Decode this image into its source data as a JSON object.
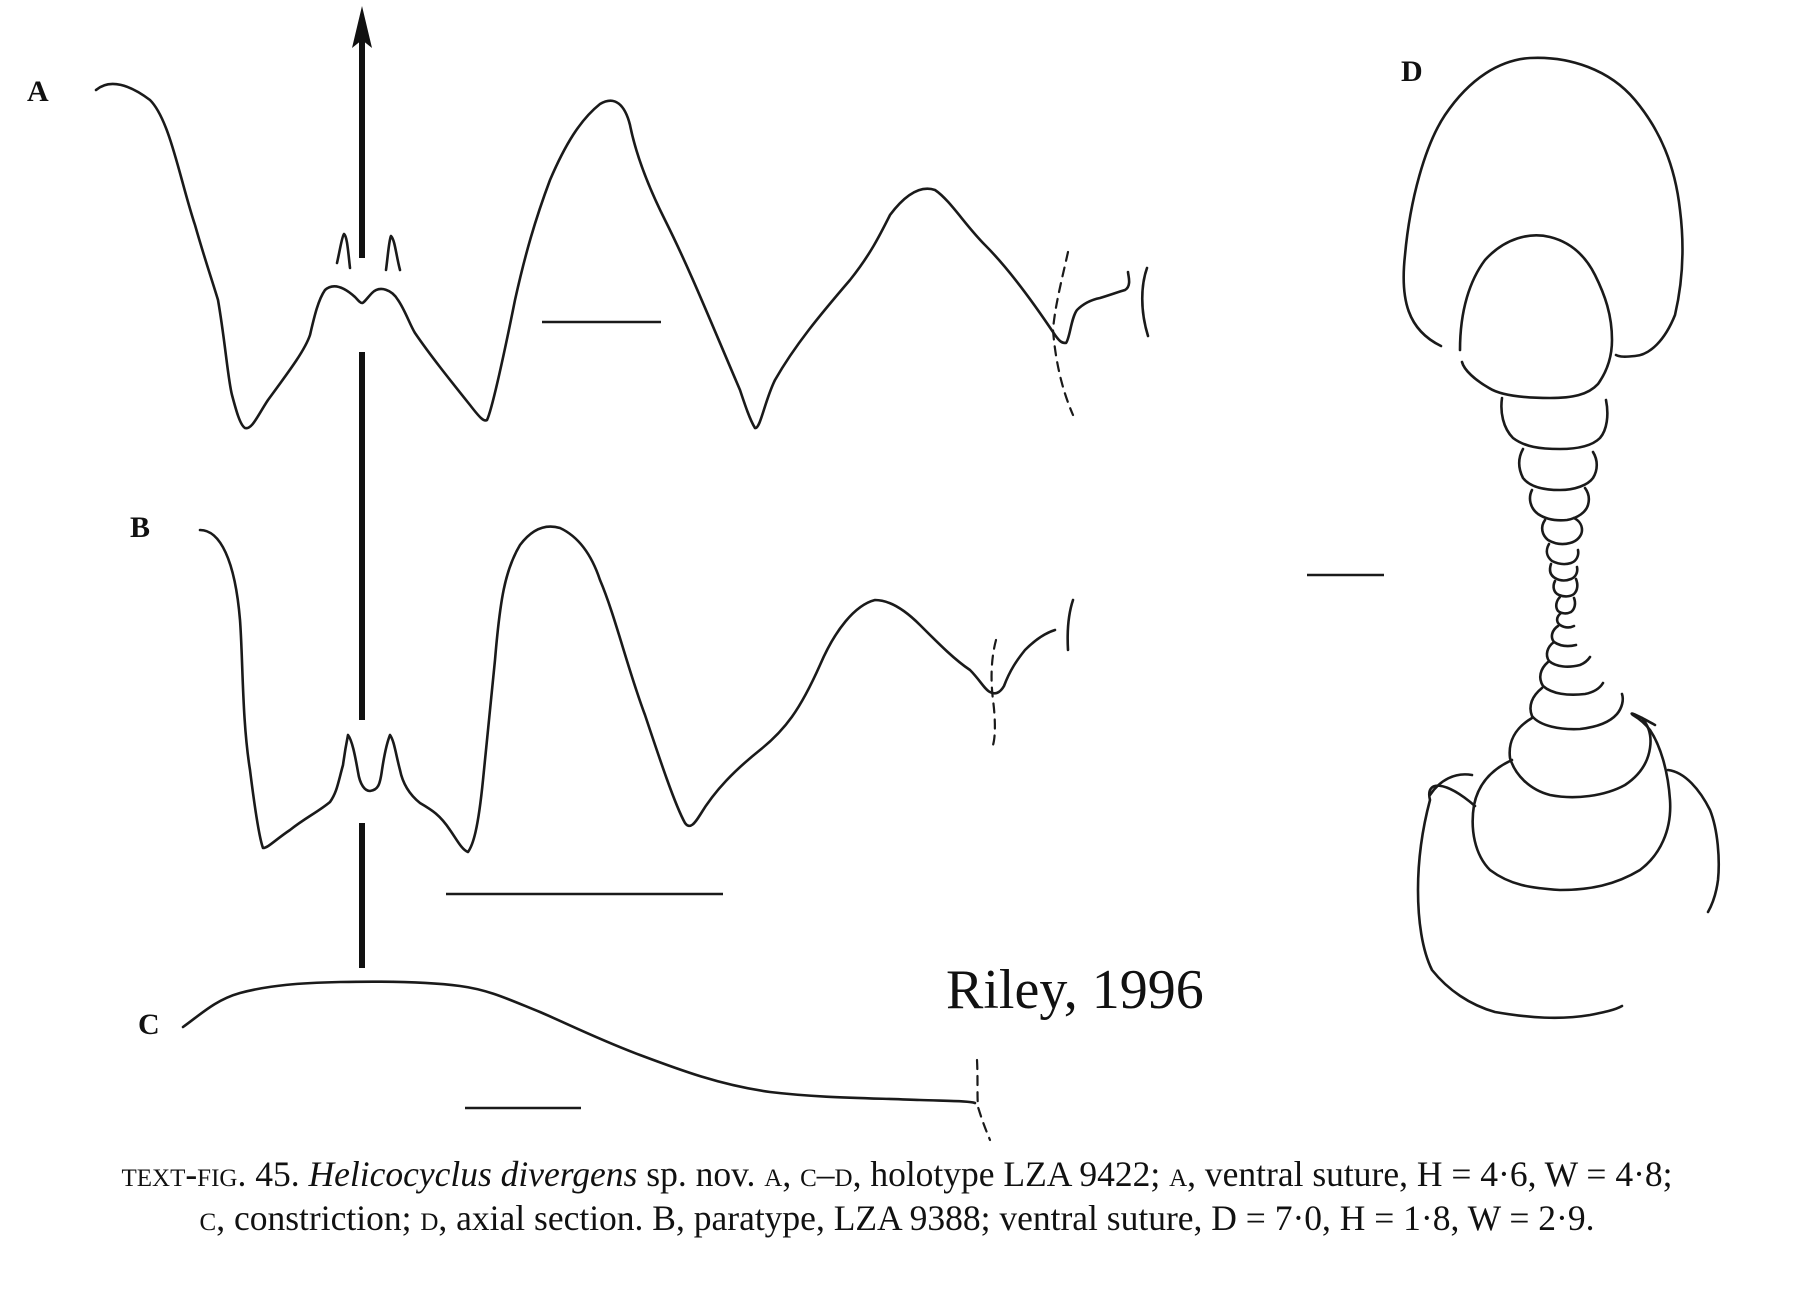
{
  "figure": {
    "panels": {
      "a": "A",
      "b": "B",
      "c": "C",
      "d": "D"
    },
    "credit": "Riley, 1996"
  },
  "caption": {
    "fig_label": "text-fig. 45.",
    "species": "Helicocyclus divergens",
    "seg1": " sp. nov. ",
    "sc_a1": "a",
    "seg2": ", ",
    "sc_cd": "c–d",
    "seg3": ", holotype LZA 9422; ",
    "sc_a2": "a",
    "seg4": ", ventral suture, H = 4·6, W = 4·8;",
    "sc_c": "c",
    "seg5": ", constriction; ",
    "sc_d": "d",
    "seg6": ", axial section. B, paratype, LZA 9388; ventral suture, D = 7·0, H = 1·8, W = 2·9."
  }
}
